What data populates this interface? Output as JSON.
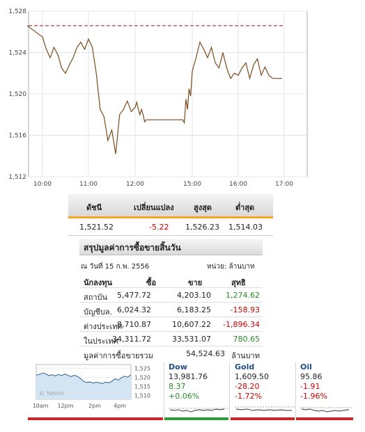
{
  "chart_data": {
    "type": "line",
    "x": [
      "09:50",
      "10:00",
      "10:05",
      "10:10",
      "10:15",
      "10:20",
      "10:25",
      "10:30",
      "10:35",
      "10:40",
      "10:45",
      "10:50",
      "10:55",
      "11:00",
      "11:05",
      "11:10",
      "11:15",
      "11:20",
      "11:25",
      "11:30",
      "11:35",
      "11:40",
      "11:45",
      "11:50",
      "11:55",
      "12:00",
      "12:05",
      "12:10",
      "12:15",
      "12:20",
      "12:25",
      "12:30",
      "12:35",
      "14:30",
      "14:35",
      "14:40",
      "14:45",
      "14:50",
      "14:55",
      "15:00",
      "15:05",
      "15:10",
      "15:15",
      "15:20",
      "15:25",
      "15:30",
      "15:35",
      "15:40",
      "15:45",
      "15:50",
      "15:55",
      "16:00",
      "16:05",
      "16:10",
      "16:15",
      "16:20",
      "16:25",
      "16:30",
      "16:35",
      "16:40",
      "16:45"
    ],
    "values": [
      1526.6,
      1525.5,
      1524.3,
      1523.5,
      1524.5,
      1523.8,
      1522.5,
      1522.0,
      1522.8,
      1523.5,
      1524.5,
      1525.0,
      1524.3,
      1525.3,
      1524.5,
      1522.0,
      1518.5,
      1517.8,
      1515.5,
      1516.5,
      1514.2,
      1518.0,
      1518.5,
      1519.3,
      1518.3,
      1518.7,
      1519.2,
      1518.5,
      1518.0,
      1518.5,
      1518.0,
      1517.3,
      1517.5,
      1517.5,
      1517.2,
      1519.5,
      1518.5,
      1520.5,
      1519.8,
      1522.2,
      1523.5,
      1525.0,
      1524.3,
      1523.5,
      1524.5,
      1523.0,
      1522.5,
      1524.0,
      1522.5,
      1521.5,
      1522.0,
      1521.8,
      1522.5,
      1523.0,
      1521.5,
      1522.8,
      1523.4,
      1521.8,
      1522.6,
      1521.8,
      1521.5
    ],
    "previous_close": 1526.6,
    "xticks": [
      "10:00",
      "11:00",
      "12:00",
      "15:00",
      "16:00",
      "17:00"
    ],
    "yticks": [
      "1,512",
      "1,516",
      "1,520",
      "1,524",
      "1,528"
    ],
    "ylim": [
      1512,
      1528
    ],
    "grid": true,
    "line_color": "#7a4a1e",
    "ref_color": "#8b1a1a"
  },
  "index_table": {
    "headers": [
      "ดัชนี",
      "เปลี่ยนแปลง",
      "สูงสุด",
      "ต่ำสุด"
    ],
    "row": [
      "1,521.52",
      "-5.22",
      "1,526.23",
      "1,514.03"
    ]
  },
  "net_trading": {
    "title": "สรุปมูลค่าการซื้อขายสิ้นวัน",
    "date": "ณ วันที่ 15 ก.พ. 2556",
    "unit": "หน่วย: ล้านบาท",
    "headers": [
      "นักลงทุน",
      "ซื้อ",
      "ขาย",
      "สุทธิ"
    ],
    "rows": [
      [
        "สถาบัน",
        "5,477.72",
        "4,203.10",
        "1,274.62"
      ],
      [
        "บัญชีบล.",
        "6,024.32",
        "6,183.25",
        "-158.93"
      ],
      [
        "ต่างประเทศ",
        "8,710.87",
        "10,607.22",
        "-1,896.34"
      ],
      [
        "ในประเทศ",
        "34,311.72",
        "33,531.07",
        "780.65"
      ]
    ],
    "total_label": "มูลค่าการซื้อขายรวม",
    "total_value": "54,524.63",
    "total_unit": "ล้านบาท"
  },
  "mini_chart": {
    "watermark": "© Yahoo!",
    "yticks": [
      "1,525",
      "1,520",
      "1,515",
      "1,510"
    ],
    "xticks": [
      "10am",
      "12pm",
      "2pm",
      "4pm"
    ],
    "values": [
      1521.2,
      1521.6,
      1522.4,
      1522.0,
      1521.0,
      1521.4,
      1520.8,
      1521.6,
      1520.9,
      1521.8,
      1521.2,
      1520.4,
      1521.1,
      1520.6,
      1519.4,
      1517.8,
      1517.2,
      1517.5,
      1516.9,
      1517.3,
      1517.0,
      1516.6,
      1517.4,
      1517.0,
      1517.9,
      1519.3,
      1518.5,
      1519.8,
      1520.6,
      1520.1,
      1521.5
    ],
    "ylim": [
      1508,
      1527
    ]
  },
  "markets": [
    {
      "name": "Dow",
      "value": "13,981.76",
      "change": "8.37",
      "pct": "+0.06%",
      "dir": "up"
    },
    {
      "name": "Gold",
      "value": "1,609.50",
      "change": "-28.20",
      "pct": "-1.72%",
      "dir": "down"
    },
    {
      "name": "Oil",
      "value": "95.86",
      "change": "-1.91",
      "pct": "-1.96%",
      "dir": "down"
    }
  ]
}
